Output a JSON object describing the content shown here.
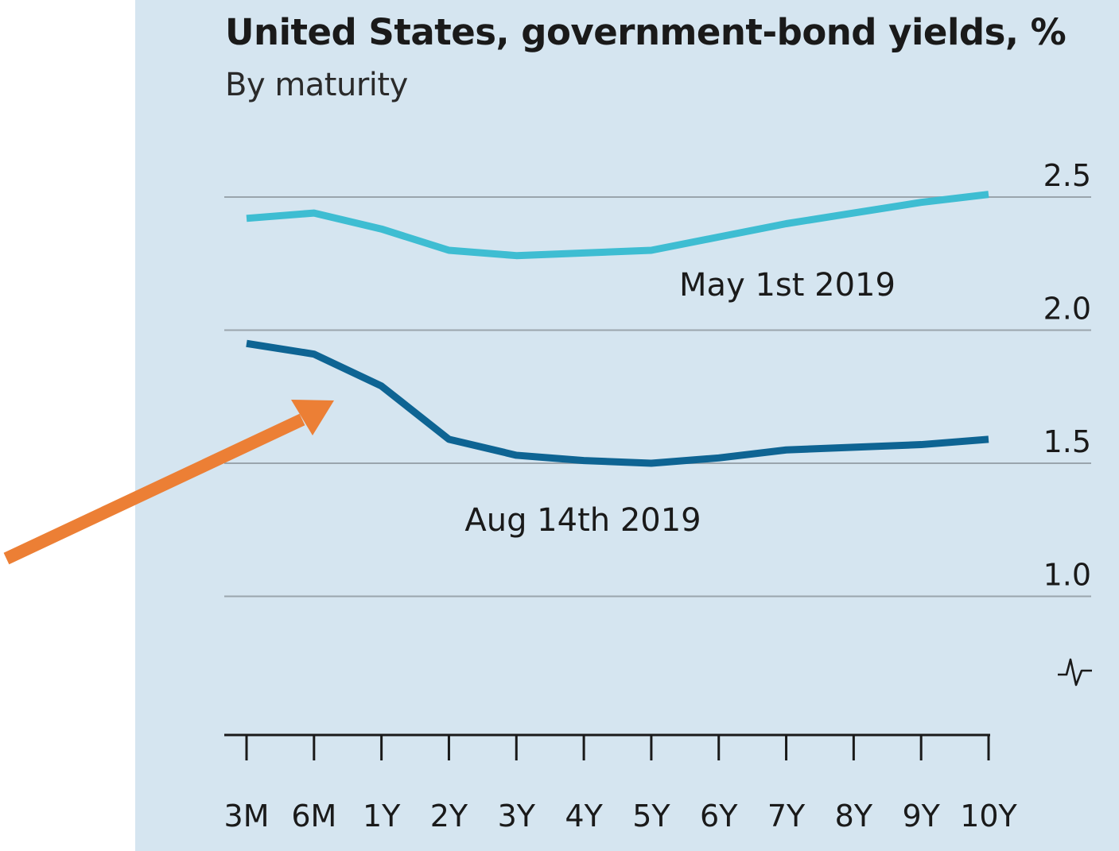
{
  "colors": {
    "panel_background": "#d5e5f0",
    "gridline": "#9aa5ad",
    "axis": "#1a1a1a",
    "series_may": "#3ebdd2",
    "series_aug": "#0e6493",
    "annotation_arrow": "#ec7f35"
  },
  "chart_data": {
    "type": "line",
    "title": "United States, government-bond yields, %",
    "subtitle": "By maturity",
    "categories": [
      "3M",
      "6M",
      "1Y",
      "2Y",
      "3Y",
      "4Y",
      "5Y",
      "6Y",
      "7Y",
      "8Y",
      "9Y",
      "10Y"
    ],
    "series": [
      {
        "name": "May 1st 2019",
        "color": "#3ebdd2",
        "values": [
          2.42,
          2.44,
          2.38,
          2.3,
          2.28,
          2.29,
          2.3,
          2.35,
          2.4,
          2.44,
          2.48,
          2.51
        ]
      },
      {
        "name": "Aug 14th 2019",
        "color": "#0e6493",
        "values": [
          1.95,
          1.91,
          1.79,
          1.59,
          1.53,
          1.51,
          1.5,
          1.52,
          1.55,
          1.56,
          1.57,
          1.59
        ]
      }
    ],
    "y_ticks": [
      "2.5",
      "2.0",
      "1.5",
      "1.0"
    ],
    "ylim": [
      0.5,
      2.5
    ],
    "y_axis_break_icon": "axis-break-icon",
    "grid": true,
    "y_axis_position": "right",
    "annotation": {
      "type": "arrow",
      "color": "#ec7f35",
      "points_to_series": "Aug 14th 2019"
    }
  }
}
